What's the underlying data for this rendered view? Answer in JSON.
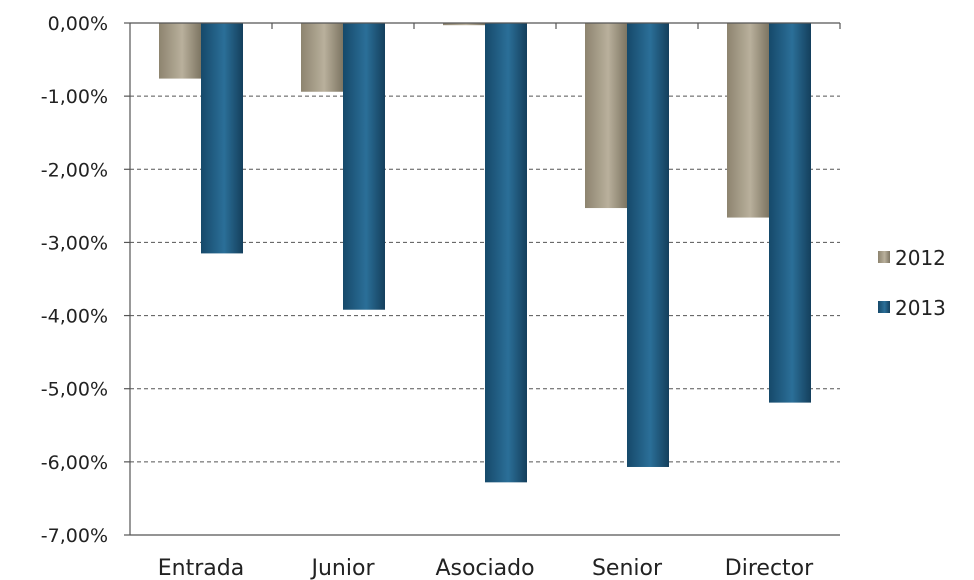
{
  "chart_data": {
    "type": "bar",
    "categories": [
      "Entrada",
      "Junior",
      "Asociado",
      "Senior",
      "Director"
    ],
    "series": [
      {
        "name": "2012",
        "values": [
          -0.76,
          -0.94,
          -0.03,
          -2.53,
          -2.66
        ],
        "color": "#a39a86"
      },
      {
        "name": "2013",
        "values": [
          -3.15,
          -3.92,
          -6.28,
          -6.07,
          -5.19
        ],
        "color": "#1f5f86"
      }
    ],
    "y_ticks": [
      "0,00%",
      "-1,00%",
      "-2,00%",
      "-3,00%",
      "-4,00%",
      "-5,00%",
      "-6,00%",
      "-7,00%"
    ],
    "ylim": [
      -7,
      0
    ],
    "grid": true,
    "legend_position": "right"
  }
}
